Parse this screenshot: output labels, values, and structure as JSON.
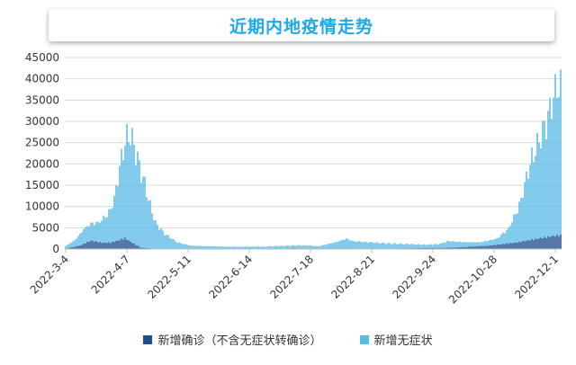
{
  "chart_data": {
    "type": "bar",
    "stacked": true,
    "title": "近期内地疫情走势",
    "xlabel": "",
    "ylabel": "",
    "ylim": [
      0,
      45000
    ],
    "yticks": [
      0,
      5000,
      10000,
      15000,
      20000,
      25000,
      30000,
      35000,
      40000,
      45000
    ],
    "x_start": "2022-03-04",
    "x_end": "2022-12-04",
    "xticks": [
      "2022-3-4",
      "2022-4-7",
      "2022-5-11",
      "2022-6-14",
      "2022-7-18",
      "2022-8-21",
      "2022-9-24",
      "2022-10-28",
      "2022-12-1"
    ],
    "grid": "horizontal",
    "legend_position": "bottom",
    "series": [
      {
        "name": "新增确诊（不含无症状转确诊）",
        "color": "#1f4e8c",
        "anchors": [
          [
            0,
            100
          ],
          [
            8,
            800
          ],
          [
            14,
            2000
          ],
          [
            20,
            1500
          ],
          [
            25,
            1500
          ],
          [
            33,
            2500
          ],
          [
            38,
            1200
          ],
          [
            42,
            300
          ],
          [
            50,
            80
          ],
          [
            60,
            60
          ],
          [
            100,
            50
          ],
          [
            130,
            150
          ],
          [
            150,
            120
          ],
          [
            180,
            100
          ],
          [
            215,
            300
          ],
          [
            235,
            800
          ],
          [
            250,
            1500
          ],
          [
            270,
            3000
          ],
          [
            275,
            3200
          ]
        ]
      },
      {
        "name": "新增无症状",
        "color": "#5bbbe6",
        "anchors": [
          [
            0,
            600
          ],
          [
            5,
            1500
          ],
          [
            10,
            3500
          ],
          [
            18,
            4500
          ],
          [
            24,
            7000
          ],
          [
            27,
            10000
          ],
          [
            30,
            17000
          ],
          [
            32,
            21000
          ],
          [
            34,
            24000
          ],
          [
            36,
            25000
          ],
          [
            38,
            23000
          ],
          [
            41,
            19000
          ],
          [
            44,
            15000
          ],
          [
            47,
            10000
          ],
          [
            50,
            6000
          ],
          [
            55,
            3500
          ],
          [
            62,
            1500
          ],
          [
            70,
            700
          ],
          [
            90,
            500
          ],
          [
            110,
            500
          ],
          [
            128,
            700
          ],
          [
            135,
            700
          ],
          [
            140,
            500
          ],
          [
            150,
            1500
          ],
          [
            156,
            2300
          ],
          [
            160,
            1700
          ],
          [
            168,
            1500
          ],
          [
            175,
            1300
          ],
          [
            185,
            1100
          ],
          [
            200,
            800
          ],
          [
            207,
            900
          ],
          [
            213,
            1600
          ],
          [
            220,
            1200
          ],
          [
            230,
            900
          ],
          [
            240,
            1500
          ],
          [
            246,
            3500
          ],
          [
            252,
            8500
          ],
          [
            258,
            18000
          ],
          [
            263,
            23000
          ],
          [
            268,
            28000
          ],
          [
            271,
            33000
          ],
          [
            274,
            35500
          ],
          [
            276,
            33500
          ],
          [
            278,
            31000
          ]
        ]
      }
    ]
  }
}
